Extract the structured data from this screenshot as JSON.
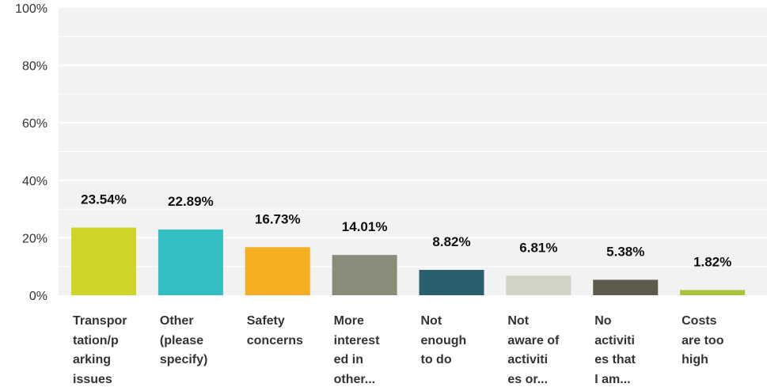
{
  "chart_data": {
    "type": "bar",
    "categories": [
      "Transpor\ntation/p\narking\nissues",
      "Other\n(please\nspecify)",
      "Safety\nconcerns",
      "More\ninterest\ned in\nother...",
      "Not\nenough\nto do",
      "Not\naware of\nactiviti\nes or...",
      "No\nactiviti\nes that\nI am...",
      "Costs\nare too\nhigh"
    ],
    "values": [
      23.54,
      22.89,
      16.73,
      14.01,
      8.82,
      6.81,
      5.38,
      1.82
    ],
    "value_labels": [
      "23.54%",
      "22.89%",
      "16.73%",
      "14.01%",
      "8.82%",
      "6.81%",
      "5.38%",
      "1.82%"
    ],
    "colors": [
      "#cdd52a",
      "#33bfc1",
      "#f5ae22",
      "#8b8b7a",
      "#2c5f6e",
      "#d3d3c5",
      "#5d5b4b",
      "#a9c23c"
    ],
    "ylim": [
      0,
      100
    ],
    "yticks": [
      "0%",
      "20%",
      "40%",
      "60%",
      "80%",
      "100%"
    ],
    "ytick_values": [
      0,
      20,
      40,
      60,
      80,
      100
    ],
    "grid": true,
    "plot_background": "#f2f2f2",
    "title": "",
    "xlabel": "",
    "ylabel": ""
  }
}
